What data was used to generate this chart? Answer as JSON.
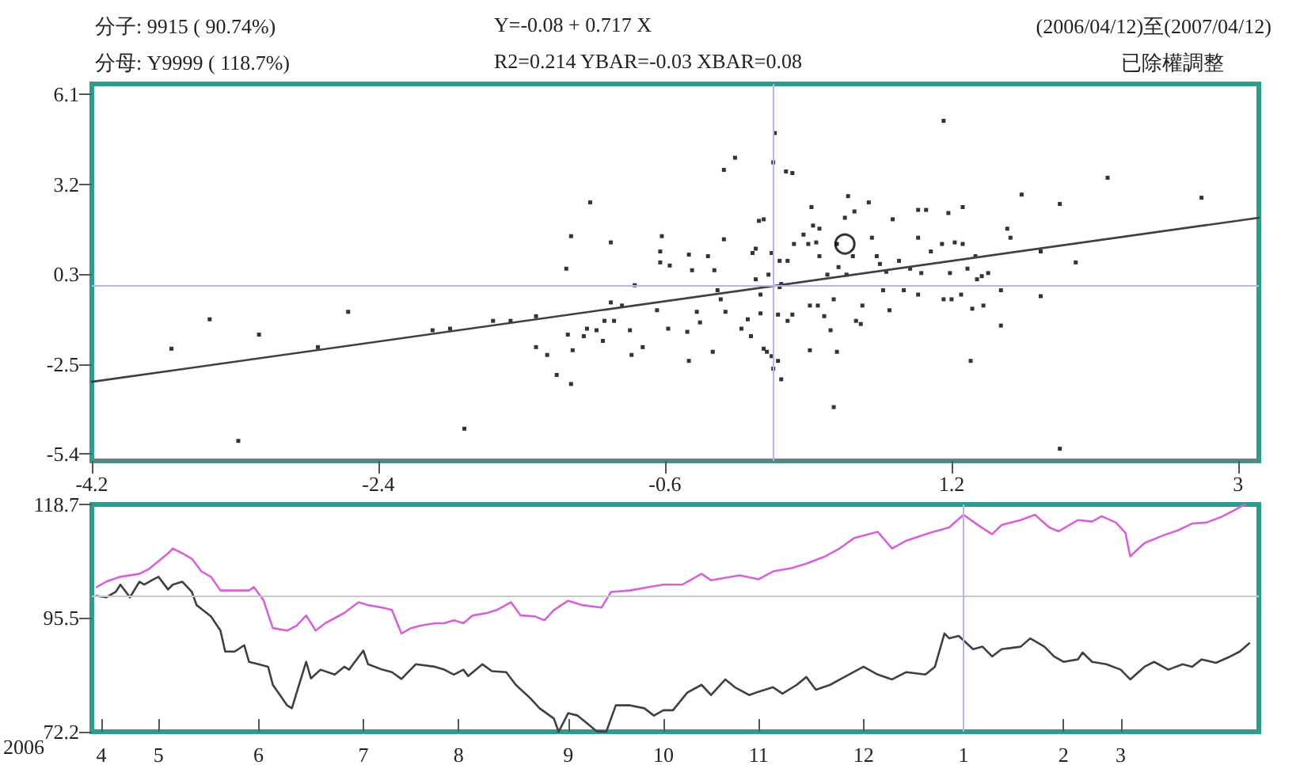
{
  "chart_data": [
    {
      "type": "scatter",
      "annotations": [
        "分子: 9915 ( 90.74%)",
        "分母: Y9999 ( 118.7%)",
        "Y=-0.08 + 0.717 X",
        "R2=0.214    YBAR=-0.03    XBAR=0.08",
        "(2006/04/12)至(2007/04/12)",
        "已除權調整"
      ],
      "xlim": [
        -4.2,
        3.13
      ],
      "xticks": [
        -4.2,
        -2.4,
        -0.6,
        1.2,
        3.0
      ],
      "ylim": [
        -5.62,
        6.44
      ],
      "yticks": [
        6.1,
        {
          "value": 3.225,
          "label": "3.2"
        },
        {
          "value": 0.35,
          "label": "0.3"
        },
        {
          "value": -2.525,
          "label": "-2.5"
        },
        -5.4
      ],
      "ref_lines": [
        {
          "axis": "x",
          "value": 0.08,
          "color": "#b4b4f0"
        },
        {
          "axis": "y",
          "value": -0.03,
          "color": "#b4b4f0"
        }
      ],
      "series": [
        {
          "type": "scatter",
          "color": "#000000",
          "marker": "square",
          "x": [
            -3.7,
            -3.46,
            -3.15,
            -3.28,
            -2.78,
            -2.59,
            -2.06,
            -1.95,
            -1.86,
            -1.68,
            -1.57,
            -1.41,
            -1.41,
            -1.34,
            -1.28,
            -1.22,
            -1.19,
            -1.21,
            -1.18,
            -1.19,
            -1.11,
            -1.09,
            -1.07,
            -1.03,
            -0.98,
            -0.99,
            -0.94,
            -0.94,
            -0.92,
            -0.87,
            -0.82,
            -0.81,
            -0.79,
            -0.74,
            -0.65,
            -0.63,
            -0.63,
            -0.62,
            -0.58,
            -0.57,
            -0.45,
            -0.46,
            -0.45,
            -0.43,
            -0.4,
            -0.38,
            -0.33,
            -0.29,
            -0.3,
            -0.27,
            -0.25,
            -0.23,
            -0.16,
            -0.23,
            -0.22,
            -0.12,
            -0.08,
            -0.06,
            -0.05,
            -0.03,
            -0.01,
            0.02,
            -0.03,
            0.0,
            0.0,
            0.02,
            0.04,
            0.05,
            0.07,
            0.08,
            0.09,
            0.07,
            0.08,
            0.11,
            0.13,
            0.11,
            0.12,
            0.13,
            0.12,
            0.17,
            0.16,
            0.2,
            0.17,
            0.2,
            0.21,
            0.27,
            0.3,
            0.32,
            0.33,
            0.35,
            0.37,
            0.31,
            0.31,
            0.36,
            0.37,
            0.4,
            0.42,
            0.44,
            0.46,
            0.46,
            0.48,
            0.48,
            0.49,
            0.53,
            0.55,
            0.54,
            0.58,
            0.59,
            0.6,
            0.63,
            0.64,
            0.68,
            0.7,
            0.73,
            0.75,
            0.77,
            0.79,
            0.81,
            0.83,
            0.87,
            0.9,
            0.94,
            0.99,
            1.04,
            0.99,
            0.99,
            1.01,
            1.07,
            1.14,
            1.18,
            1.15,
            1.15,
            1.2,
            1.19,
            1.22,
            1.27,
            1.27,
            1.26,
            1.3,
            1.32,
            1.33,
            1.35,
            1.36,
            1.39,
            1.4,
            1.43,
            1.51,
            1.51,
            1.55,
            1.57,
            1.64,
            1.76,
            1.76,
            1.88,
            1.88,
            1.98,
            2.18,
            2.77
          ],
          "values": [
            -2.03,
            -1.09,
            -1.58,
            -4.98,
            -1.98,
            -0.85,
            -1.44,
            -1.39,
            -4.59,
            -1.14,
            -1.14,
            -0.99,
            -1.98,
            -2.23,
            -2.87,
            0.53,
            1.57,
            -1.58,
            -2.08,
            -3.16,
            -1.63,
            -1.39,
            2.65,
            -1.44,
            -1.14,
            -1.78,
            1.37,
            -0.55,
            -1.14,
            -0.65,
            -1.44,
            -2.23,
            0.0,
            -1.98,
            -0.8,
            1.08,
            0.73,
            1.57,
            -1.39,
            0.63,
            0.98,
            -1.49,
            -2.42,
            0.48,
            -0.85,
            -1.19,
            0.93,
            0.48,
            -2.13,
            -0.16,
            -0.45,
            3.69,
            4.08,
            1.47,
            -0.85,
            -1.39,
            -1.09,
            -1.63,
            1.03,
            1.17,
            2.06,
            2.11,
            0.19,
            -0.3,
            -0.9,
            -2.03,
            -2.13,
            0.34,
            1.03,
            3.93,
            4.87,
            -2.27,
            -2.67,
            -2.42,
            -3.01,
            -0.94,
            -0.06,
            0.04,
            0.78,
            0.78,
            3.64,
            3.59,
            -1.14,
            -0.94,
            1.32,
            1.62,
            1.32,
            2.5,
            1.91,
            1.37,
            1.81,
            -0.65,
            -2.08,
            -0.65,
            0.93,
            -0.99,
            0.34,
            -1.44,
            -3.9,
            -0.45,
            -2.13,
            1.32,
            0.58,
            2.16,
            2.85,
            0.34,
            0.93,
            2.36,
            -1.14,
            -1.24,
            -0.65,
            2.65,
            1.52,
            0.93,
            0.68,
            -0.16,
            0.43,
            -0.8,
            2.11,
            0.78,
            -0.16,
            0.53,
            2.41,
            2.41,
            1.52,
            -0.3,
            0.39,
            1.08,
            1.32,
            2.31,
            5.26,
            -0.45,
            -0.45,
            0.39,
            1.37,
            2.5,
            1.32,
            -0.3,
            0.53,
            -2.42,
            -0.75,
            0.93,
            0.19,
            0.29,
            -0.65,
            0.39,
            -1.29,
            -0.16,
            1.81,
            1.52,
            2.9,
            1.08,
            -0.35,
            2.6,
            -5.23,
            0.73,
            3.44,
            2.8
          ]
        },
        {
          "type": "scatter",
          "color": "#000000",
          "marker": "circle",
          "x": [
            0.53
          ],
          "values": [
            1.32
          ]
        },
        {
          "type": "line",
          "color": "#404040",
          "marker": "none",
          "line_style": "solid",
          "x": [
            -4.2,
            3.13
          ],
          "values": [
            -3.09,
            2.16
          ]
        }
      ]
    },
    {
      "type": "line",
      "annotations": [
        "2006"
      ],
      "marker": "none",
      "line_style": "solid",
      "categories": [
        null,
        null,
        "4",
        null,
        null,
        null,
        null,
        null,
        null,
        null,
        null,
        null,
        null,
        null,
        "5",
        null,
        null,
        null,
        null,
        null,
        null,
        null,
        null,
        null,
        null,
        null,
        null,
        null,
        null,
        null,
        null,
        null,
        null,
        null,
        null,
        "6",
        null,
        null,
        null,
        null,
        null,
        null,
        null,
        null,
        null,
        null,
        null,
        null,
        null,
        null,
        null,
        null,
        null,
        null,
        null,
        null,
        null,
        "7",
        null,
        null,
        null,
        null,
        null,
        null,
        null,
        null,
        null,
        null,
        null,
        null,
        null,
        null,
        null,
        null,
        null,
        null,
        null,
        "8",
        null,
        null,
        null,
        null,
        null,
        null,
        null,
        null,
        null,
        null,
        null,
        null,
        null,
        null,
        null,
        null,
        null,
        null,
        null,
        null,
        null,
        null,
        "9",
        null,
        null,
        null,
        null,
        null,
        null,
        null,
        null,
        null,
        null,
        null,
        null,
        null,
        null,
        null,
        null,
        null,
        null,
        null,
        "10",
        null,
        null,
        null,
        null,
        null,
        null,
        null,
        null,
        null,
        null,
        null,
        null,
        null,
        null,
        null,
        null,
        null,
        null,
        null,
        "11",
        null,
        null,
        null,
        null,
        null,
        null,
        null,
        null,
        null,
        null,
        null,
        null,
        null,
        null,
        null,
        null,
        null,
        null,
        null,
        null,
        null,
        "12",
        null,
        null,
        null,
        null,
        null,
        null,
        null,
        null,
        null,
        null,
        null,
        null,
        null,
        null,
        null,
        null,
        null,
        null,
        null,
        null,
        "1",
        null,
        null,
        null,
        null,
        null,
        null,
        null,
        null,
        null,
        null,
        null,
        null,
        null,
        null,
        null,
        null,
        null,
        null,
        null,
        null,
        "2",
        null,
        null,
        null,
        null,
        null,
        null,
        null,
        null,
        null,
        null,
        null,
        "3",
        null,
        null,
        null,
        null,
        null,
        null,
        null,
        null,
        null,
        null,
        null,
        null,
        null,
        null,
        null,
        null,
        null,
        null,
        null,
        null,
        null,
        null,
        null,
        null,
        null,
        null,
        null,
        null,
        null
      ],
      "ylim": [
        72.2,
        118.7
      ],
      "yticks": [
        118.7,
        95.5,
        72.2
      ],
      "ref_lines": [
        {
          "axis": "y",
          "value": 100,
          "color": "#c8c8c8"
        },
        {
          "axis": "x",
          "value": "1",
          "color": "#b4b4f0"
        }
      ],
      "series": [
        {
          "color": "#d860d8",
          "values": [
            null,
            101.8,
            null,
            102.9,
            null,
            null,
            103.9,
            null,
            null,
            null,
            104.5,
            null,
            105.5,
            null,
            107.1,
            null,
            108.7,
            109.7,
            null,
            108.7,
            null,
            107.6,
            null,
            105.0,
            null,
            103.9,
            null,
            101.1,
            null,
            101.1,
            null,
            null,
            null,
            101.1,
            101.8,
            null,
            99.2,
            null,
            93.4,
            null,
            null,
            92.9,
            null,
            93.9,
            null,
            96.0,
            null,
            92.9,
            null,
            94.4,
            null,
            null,
            null,
            96.5,
            null,
            null,
            98.7,
            null,
            98.1,
            null,
            null,
            97.6,
            null,
            97.1,
            null,
            92.3,
            null,
            93.4,
            null,
            93.9,
            null,
            null,
            94.4,
            null,
            94.4,
            null,
            95.0,
            null,
            94.4,
            null,
            96.0,
            null,
            null,
            96.5,
            null,
            97.1,
            null,
            null,
            98.7,
            null,
            96.0,
            null,
            null,
            95.8,
            null,
            95.0,
            null,
            97.1,
            null,
            null,
            99.0,
            null,
            null,
            98.1,
            null,
            null,
            null,
            97.6,
            null,
            100.8,
            null,
            null,
            null,
            101.1,
            null,
            null,
            null,
            101.8,
            null,
            null,
            102.3,
            null,
            null,
            null,
            102.3,
            null,
            null,
            null,
            104.5,
            null,
            103.2,
            null,
            null,
            null,
            null,
            null,
            104.2,
            null,
            null,
            null,
            103.4,
            null,
            null,
            105.0,
            null,
            null,
            null,
            105.7,
            null,
            null,
            106.6,
            null,
            null,
            null,
            108.1,
            null,
            null,
            109.7,
            null,
            null,
            111.8,
            null,
            null,
            null,
            null,
            113.1,
            null,
            null,
            109.7,
            null,
            null,
            111.3,
            null,
            null,
            null,
            null,
            112.9,
            null,
            null,
            null,
            114.0,
            null,
            null,
            116.6,
            null,
            null,
            114.5,
            null,
            null,
            112.6,
            null,
            114.5,
            null,
            null,
            null,
            115.5,
            null,
            null,
            116.6,
            null,
            null,
            114.0,
            null,
            113.2,
            null,
            null,
            null,
            115.5,
            null,
            null,
            115.2,
            null,
            116.3,
            null,
            null,
            115.0,
            null,
            112.9,
            108.1,
            null,
            null,
            110.8,
            null,
            null,
            null,
            112.4,
            null,
            null,
            113.4,
            null,
            null,
            114.8,
            null,
            null,
            115.0,
            null,
            null,
            116.1,
            null,
            null,
            117.6,
            null,
            118.7,
            null,
            null,
            null
          ]
        },
        {
          "color": "#404040",
          "values": [
            null,
            100.0,
            null,
            99.7,
            null,
            100.8,
            102.3,
            null,
            99.7,
            null,
            102.9,
            102.3,
            null,
            103.4,
            103.9,
            null,
            101.3,
            102.3,
            null,
            102.9,
            null,
            100.8,
            98.1,
            null,
            null,
            95.8,
            null,
            92.9,
            88.6,
            null,
            88.6,
            null,
            89.9,
            86.5,
            null,
            86.0,
            null,
            85.5,
            81.8,
            null,
            null,
            77.6,
            77.0,
            80.2,
            null,
            86.5,
            83.1,
            null,
            84.9,
            null,
            null,
            83.9,
            null,
            85.5,
            84.9,
            null,
            null,
            88.8,
            86.0,
            null,
            null,
            84.9,
            null,
            84.4,
            null,
            83.0,
            null,
            null,
            86.0,
            null,
            null,
            null,
            85.5,
            null,
            84.9,
            null,
            83.9,
            null,
            84.9,
            83.6,
            null,
            null,
            86.0,
            null,
            84.6,
            null,
            null,
            84.4,
            null,
            81.8,
            null,
            null,
            79.1,
            null,
            77.0,
            null,
            null,
            74.9,
            72.2,
            null,
            76.0,
            null,
            75.5,
            null,
            73.9,
            null,
            72.3,
            null,
            72.2,
            null,
            77.6,
            null,
            null,
            77.6,
            null,
            null,
            77.0,
            null,
            75.5,
            null,
            76.6,
            null,
            76.6,
            null,
            null,
            80.2,
            null,
            null,
            81.8,
            null,
            79.7,
            null,
            null,
            82.9,
            null,
            81.3,
            null,
            null,
            79.7,
            null,
            80.4,
            null,
            null,
            81.3,
            null,
            80.0,
            null,
            null,
            81.8,
            null,
            83.4,
            null,
            80.8,
            null,
            null,
            81.8,
            null,
            null,
            83.4,
            null,
            null,
            null,
            85.5,
            null,
            null,
            83.9,
            null,
            null,
            82.9,
            null,
            null,
            84.4,
            null,
            null,
            null,
            83.9,
            null,
            85.5,
            null,
            92.3,
            91.3,
            null,
            91.8,
            null,
            null,
            89.1,
            null,
            89.6,
            null,
            87.6,
            null,
            89.1,
            null,
            null,
            null,
            89.6,
            null,
            91.3,
            null,
            null,
            89.6,
            null,
            87.6,
            null,
            86.5,
            null,
            null,
            87.0,
            88.4,
            null,
            86.5,
            null,
            null,
            86.0,
            null,
            null,
            84.9,
            null,
            82.9,
            null,
            null,
            85.5,
            null,
            86.5,
            null,
            null,
            84.9,
            null,
            null,
            86.0,
            null,
            85.5,
            null,
            87.0,
            null,
            null,
            86.3,
            null,
            null,
            87.6,
            null,
            88.6,
            null,
            90.3,
            null,
            null
          ]
        }
      ]
    }
  ]
}
